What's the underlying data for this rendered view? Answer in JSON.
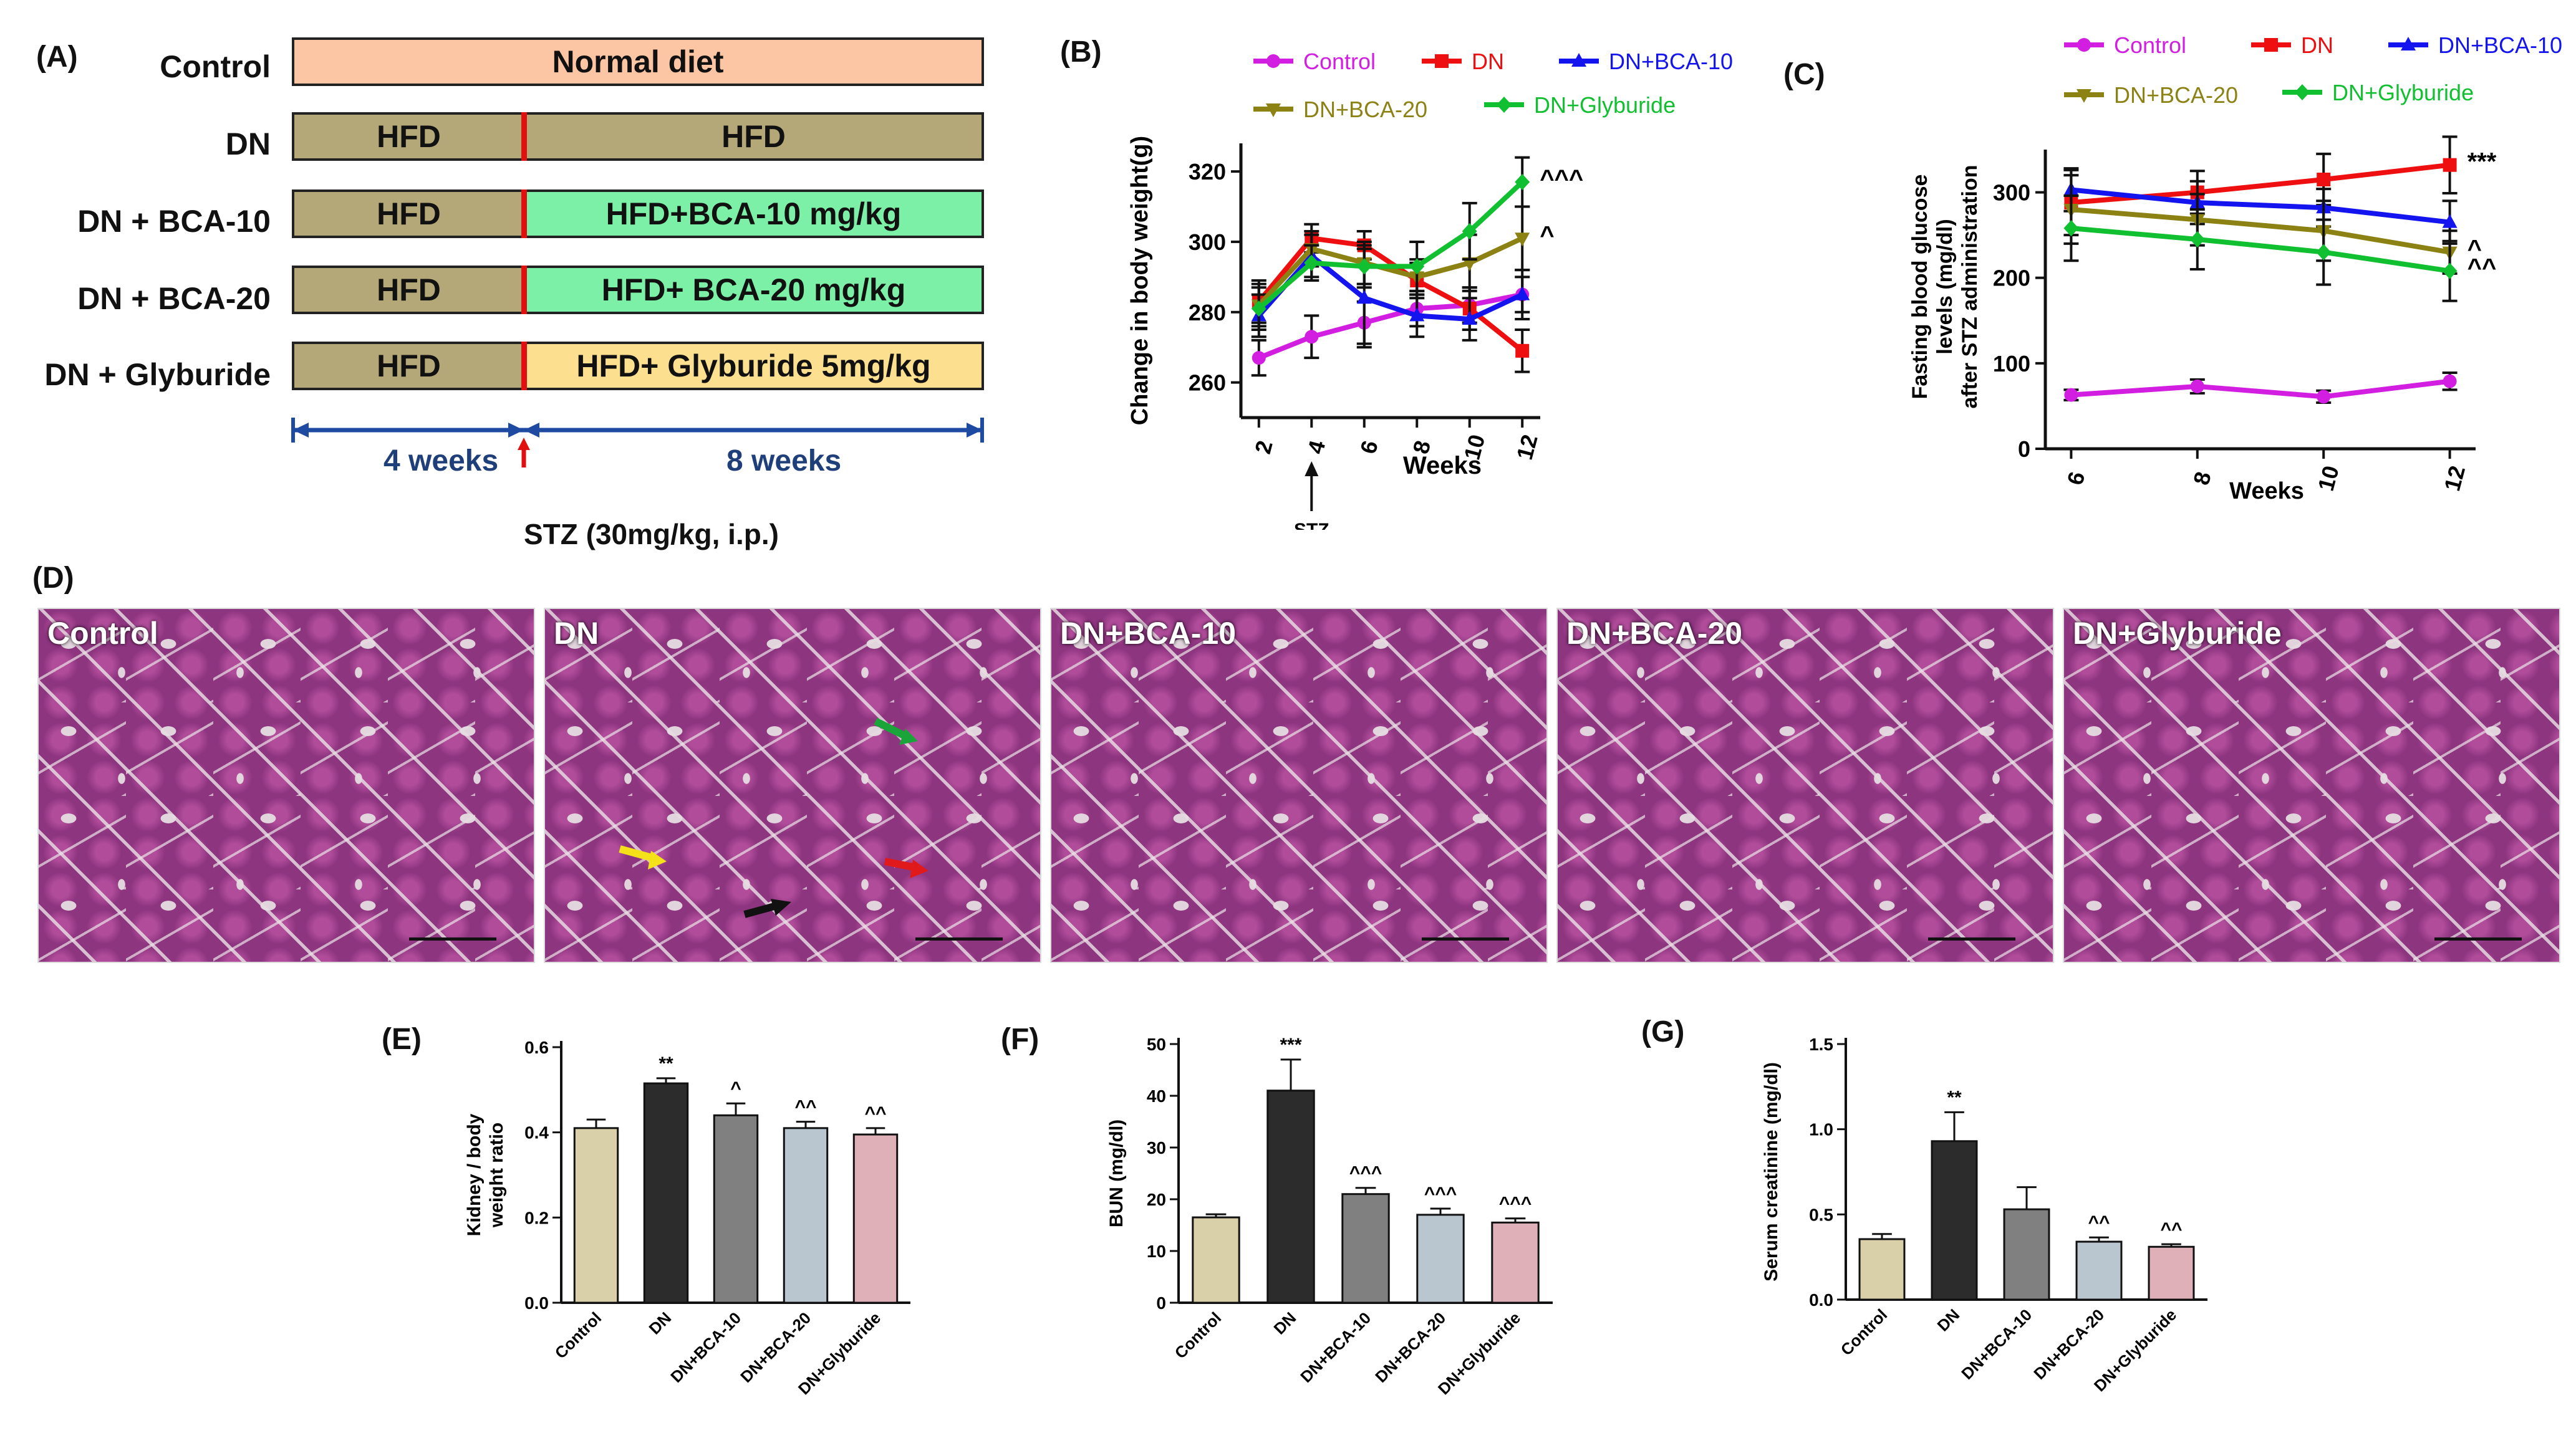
{
  "panelA": {
    "label": "(A)",
    "rows": [
      {
        "name": "Control",
        "left": "Normal diet",
        "right": ""
      },
      {
        "name": "DN",
        "left": "HFD",
        "right": "HFD"
      },
      {
        "name": "DN + BCA-10",
        "left": "HFD",
        "right": "HFD+BCA-10 mg/kg"
      },
      {
        "name": "DN + BCA-20",
        "left": "HFD",
        "right": "HFD+ BCA-20 mg/kg"
      },
      {
        "name": "DN + Glyburide",
        "left": "HFD",
        "right": "HFD+ Glyburide 5mg/kg"
      }
    ],
    "period1": "4 weeks",
    "period2": "8 weeks",
    "stz": "STZ (30mg/kg, i.p.)",
    "colors": {
      "control": "#fcc5a4",
      "hfd": "#b5a878",
      "bca": "#7cf0a6",
      "glyb": "#fcdf8f",
      "timeline": "#1f4aa1",
      "marker": "#e01010"
    }
  },
  "panelD": {
    "label": "(D)",
    "images": [
      "Control",
      "DN",
      "DN+BCA-10",
      "DN+BCA-20",
      "DN+Glyburide"
    ]
  },
  "chart_data": [
    {
      "id": "B",
      "label": "(B)",
      "type": "line",
      "xlabel": "Weeks",
      "ylabel": "Change in body weight(g)",
      "x": [
        2,
        4,
        6,
        8,
        10,
        12
      ],
      "xticks": [
        "2",
        "4",
        "6",
        "8",
        "10",
        "12"
      ],
      "yticks": [
        260,
        280,
        300,
        320
      ],
      "ylim": [
        250,
        328
      ],
      "stz_label": "STZ",
      "stz_week": 4,
      "series": [
        {
          "name": "Control",
          "color": "#d21ee0",
          "values": [
            267,
            273,
            277,
            281,
            282,
            285
          ],
          "err": [
            5,
            6,
            6,
            5,
            5,
            5
          ],
          "annotation": ""
        },
        {
          "name": "DN",
          "color": "#ee1010",
          "values": [
            283,
            301,
            299,
            289,
            281,
            269
          ],
          "err": [
            6,
            4,
            4,
            5,
            6,
            6
          ],
          "annotation": ""
        },
        {
          "name": "DN+BCA-10",
          "color": "#1414ee",
          "values": [
            279,
            296,
            284,
            279,
            278,
            285
          ],
          "err": [
            6,
            6,
            14,
            6,
            6,
            7
          ],
          "annotation": ""
        },
        {
          "name": "DN+BCA-20",
          "color": "#8c8214",
          "values": [
            282,
            298,
            294,
            290,
            294,
            301
          ],
          "err": [
            6,
            5,
            6,
            5,
            8,
            9
          ],
          "annotation": "^"
        },
        {
          "name": "DN+Glyburide",
          "color": "#10c030",
          "values": [
            281,
            294,
            293,
            293,
            303,
            317
          ],
          "err": [
            6,
            5,
            6,
            7,
            8,
            7
          ],
          "annotation": "^^^"
        }
      ]
    },
    {
      "id": "C",
      "label": "(C)",
      "type": "line",
      "xlabel": "Weeks",
      "ylabel_lines": [
        "Fasting blood glucose",
        "levels (mg/dl)",
        "after STZ administration"
      ],
      "x": [
        6,
        8,
        10,
        12
      ],
      "xticks": [
        "6",
        "8",
        "10",
        "12"
      ],
      "yticks": [
        0,
        100,
        200,
        300
      ],
      "ylim": [
        0,
        350
      ],
      "series": [
        {
          "name": "Control",
          "color": "#d21ee0",
          "values": [
            63,
            73,
            61,
            79
          ],
          "err": [
            6,
            8,
            7,
            10
          ],
          "annotation": ""
        },
        {
          "name": "DN",
          "color": "#ee1010",
          "values": [
            288,
            300,
            315,
            332
          ],
          "err": [
            38,
            25,
            30,
            33
          ],
          "annotation": "***"
        },
        {
          "name": "DN+BCA-10",
          "color": "#1414ee",
          "values": [
            303,
            288,
            282,
            265
          ],
          "err": [
            25,
            25,
            22,
            25
          ],
          "annotation": ""
        },
        {
          "name": "DN+BCA-20",
          "color": "#8c8214",
          "values": [
            280,
            268,
            255,
            230
          ],
          "err": [
            40,
            30,
            35,
            25
          ],
          "annotation": "^"
        },
        {
          "name": "DN+Glyburide",
          "color": "#10c030",
          "values": [
            258,
            245,
            230,
            208
          ],
          "err": [
            38,
            35,
            38,
            35
          ],
          "annotation": "^^"
        }
      ]
    },
    {
      "id": "E",
      "label": "(E)",
      "type": "bar",
      "ylabel_lines": [
        "Kidney / body",
        "weight ratio"
      ],
      "categories": [
        "Control",
        "DN",
        "DN+BCA-10",
        "DN+BCA-20",
        "DN+Glyburide"
      ],
      "values": [
        0.41,
        0.515,
        0.44,
        0.41,
        0.395
      ],
      "err": [
        0.02,
        0.012,
        0.028,
        0.015,
        0.015
      ],
      "annotations": [
        "",
        "**",
        "^",
        "^^",
        "^^"
      ],
      "colors": [
        "#d9cfa9",
        "#2c2c2c",
        "#808080",
        "#b9c5cf",
        "#dfb0b8"
      ],
      "yticks": [
        "0.0",
        "0.2",
        "0.4",
        "0.6"
      ],
      "ylim": [
        0,
        0.6
      ]
    },
    {
      "id": "F",
      "label": "(F)",
      "type": "bar",
      "ylabel_lines": [
        "BUN (mg/dl)"
      ],
      "categories": [
        "Control",
        "DN",
        "DN+BCA-10",
        "DN+BCA-20",
        "DN+Glyburide"
      ],
      "values": [
        16.5,
        41,
        21,
        17,
        15.5
      ],
      "err": [
        0.6,
        6,
        1.2,
        1.2,
        0.8
      ],
      "annotations": [
        "",
        "***",
        "^^^",
        "^^^",
        "^^^"
      ],
      "colors": [
        "#d9cfa9",
        "#2c2c2c",
        "#808080",
        "#b9c5cf",
        "#dfb0b8"
      ],
      "yticks": [
        "0",
        "10",
        "20",
        "30",
        "40",
        "50"
      ],
      "ylim": [
        0,
        50
      ]
    },
    {
      "id": "G",
      "label": "(G)",
      "type": "bar",
      "ylabel_lines": [
        "Serum creatinine (mg/dl)"
      ],
      "categories": [
        "Control",
        "DN",
        "DN+BCA-10",
        "DN+BCA-20",
        "DN+Glyburide"
      ],
      "values": [
        0.355,
        0.93,
        0.53,
        0.34,
        0.31
      ],
      "err": [
        0.03,
        0.17,
        0.13,
        0.025,
        0.015
      ],
      "annotations": [
        "",
        "**",
        "",
        "^^",
        "^^"
      ],
      "colors": [
        "#d9cfa9",
        "#2c2c2c",
        "#808080",
        "#b9c5cf",
        "#dfb0b8"
      ],
      "yticks": [
        "0.0",
        "0.5",
        "1.0",
        "1.5"
      ],
      "ylim": [
        0,
        1.5
      ]
    }
  ]
}
